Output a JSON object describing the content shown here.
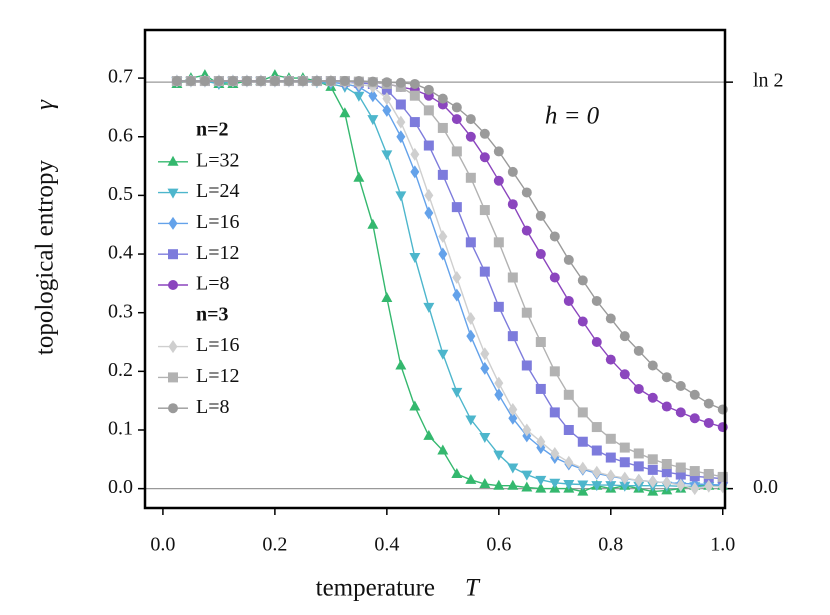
{
  "chart_data": {
    "type": "line",
    "xlabel": "temperature",
    "xlabel_symbol": "T",
    "ylabel": "topological entropy",
    "ylabel_symbol": "γ",
    "annotation": "h = 0",
    "xlim": [
      -0.032,
      1.004
    ],
    "ylim": [
      -0.033,
      0.782
    ],
    "xticks": [
      {
        "value": 0,
        "label": "0.0"
      },
      {
        "value": 0.2,
        "label": "0.2"
      },
      {
        "value": 0.4,
        "label": "0.4"
      },
      {
        "value": 0.6,
        "label": "0.6"
      },
      {
        "value": 0.8,
        "label": "0.8"
      },
      {
        "value": 1,
        "label": "1.0"
      }
    ],
    "yticks": [
      {
        "value": 0,
        "label": "0.0"
      },
      0.1,
      0.2,
      0.3,
      0.4,
      0.5,
      0.6,
      0.7
    ],
    "y2lim": [
      -0.033,
      0.782
    ],
    "y2ticks": [
      {
        "value": 0.6931,
        "label": "ln 2"
      },
      {
        "value": 0,
        "label": "0.0"
      }
    ],
    "x": [
      0.025,
      0.05,
      0.075,
      0.1,
      0.125,
      0.15,
      0.175,
      0.2,
      0.225,
      0.25,
      0.275,
      0.3,
      0.325,
      0.35,
      0.375,
      0.4,
      0.425,
      0.45,
      0.475,
      0.5,
      0.525,
      0.55,
      0.575,
      0.6,
      0.625,
      0.65,
      0.675,
      0.7,
      0.725,
      0.75,
      0.775,
      0.8,
      0.825,
      0.85,
      0.875,
      0.9,
      0.925,
      0.95,
      0.975,
      1.0
    ],
    "groups": [
      {
        "title": "n=2",
        "series": [
          {
            "name": "L=32",
            "color": "#34b86e",
            "marker": "triangle-up",
            "values": [
              0.69,
              0.7,
              0.705,
              0.69,
              0.69,
              0.695,
              0.695,
              0.705,
              0.7,
              0.7,
              0.695,
              0.685,
              0.64,
              0.53,
              0.45,
              0.325,
              0.21,
              0.14,
              0.09,
              0.065,
              0.025,
              0.015,
              0.008,
              0.005,
              0.005,
              0.002,
              0.0,
              0.0,
              0.0,
              -0.005,
              0.005,
              0.0,
              0.005,
              0.0,
              -0.005,
              -0.003,
              0.0,
              0.005,
              0.005,
              0.005
            ]
          },
          {
            "name": "L=24",
            "color": "#4db6cc",
            "marker": "triangle-down",
            "values": [
              0.695,
              0.695,
              0.695,
              0.69,
              0.695,
              0.695,
              0.695,
              0.695,
              0.695,
              0.695,
              0.693,
              0.69,
              0.685,
              0.67,
              0.63,
              0.57,
              0.5,
              0.395,
              0.31,
              0.23,
              0.165,
              0.118,
              0.088,
              0.058,
              0.036,
              0.024,
              0.015,
              0.01,
              0.008,
              0.007,
              0.006,
              0.006,
              0.005,
              0.005,
              0.005,
              0.005,
              0.004,
              0.004,
              0.004,
              0.004
            ]
          },
          {
            "name": "L=16",
            "color": "#64a2ea",
            "marker": "diamond",
            "values": [
              0.695,
              0.695,
              0.695,
              0.695,
              0.695,
              0.695,
              0.695,
              0.695,
              0.695,
              0.695,
              0.695,
              0.693,
              0.69,
              0.685,
              0.67,
              0.645,
              0.6,
              0.54,
              0.47,
              0.4,
              0.33,
              0.26,
              0.205,
              0.16,
              0.12,
              0.09,
              0.07,
              0.053,
              0.042,
              0.033,
              0.026,
              0.021,
              0.017,
              0.014,
              0.012,
              0.01,
              0.009,
              0.008,
              0.007,
              0.006
            ]
          },
          {
            "name": "L=12",
            "color": "#7d7bdc",
            "marker": "square",
            "values": [
              0.695,
              0.695,
              0.695,
              0.695,
              0.695,
              0.695,
              0.695,
              0.695,
              0.695,
              0.695,
              0.695,
              0.695,
              0.694,
              0.692,
              0.69,
              0.68,
              0.655,
              0.625,
              0.585,
              0.535,
              0.48,
              0.42,
              0.37,
              0.31,
              0.26,
              0.21,
              0.17,
              0.13,
              0.1,
              0.08,
              0.065,
              0.053,
              0.045,
              0.038,
              0.032,
              0.028,
              0.024,
              0.021,
              0.019,
              0.017
            ]
          },
          {
            "name": "L=8",
            "color": "#8b45be",
            "marker": "circle",
            "values": [
              0.695,
              0.695,
              0.695,
              0.695,
              0.695,
              0.695,
              0.695,
              0.695,
              0.695,
              0.695,
              0.695,
              0.695,
              0.695,
              0.694,
              0.693,
              0.69,
              0.685,
              0.68,
              0.67,
              0.655,
              0.63,
              0.6,
              0.565,
              0.525,
              0.485,
              0.44,
              0.4,
              0.36,
              0.32,
              0.285,
              0.25,
              0.22,
              0.195,
              0.17,
              0.155,
              0.14,
              0.13,
              0.12,
              0.112,
              0.105
            ]
          }
        ]
      },
      {
        "title": "n=3",
        "series": [
          {
            "name": "L=16",
            "color": "#cfcfcf",
            "marker": "diamond",
            "values": [
              0.695,
              0.695,
              0.695,
              0.695,
              0.695,
              0.695,
              0.695,
              0.695,
              0.695,
              0.695,
              0.695,
              0.695,
              0.693,
              0.69,
              0.685,
              0.665,
              0.625,
              0.57,
              0.5,
              0.43,
              0.36,
              0.29,
              0.23,
              0.18,
              0.135,
              0.1,
              0.08,
              0.06,
              0.045,
              0.035,
              0.028,
              0.022,
              0.018,
              0.014,
              0.012,
              0.01,
              0.006,
              0.0,
              0.004,
              0.003
            ]
          },
          {
            "name": "L=12",
            "color": "#b2b2b2",
            "marker": "square",
            "values": [
              0.695,
              0.695,
              0.695,
              0.695,
              0.695,
              0.695,
              0.695,
              0.695,
              0.695,
              0.695,
              0.695,
              0.695,
              0.695,
              0.694,
              0.693,
              0.69,
              0.685,
              0.67,
              0.645,
              0.615,
              0.575,
              0.53,
              0.475,
              0.42,
              0.36,
              0.3,
              0.25,
              0.2,
              0.16,
              0.13,
              0.105,
              0.085,
              0.07,
              0.06,
              0.05,
              0.042,
              0.036,
              0.03,
              0.025,
              0.02
            ]
          },
          {
            "name": "L=8",
            "color": "#9a9a9a",
            "marker": "circle",
            "values": [
              0.695,
              0.695,
              0.695,
              0.695,
              0.695,
              0.695,
              0.695,
              0.695,
              0.695,
              0.695,
              0.695,
              0.695,
              0.695,
              0.695,
              0.694,
              0.693,
              0.692,
              0.69,
              0.68,
              0.665,
              0.65,
              0.63,
              0.605,
              0.575,
              0.54,
              0.505,
              0.465,
              0.43,
              0.39,
              0.355,
              0.32,
              0.29,
              0.26,
              0.235,
              0.21,
              0.19,
              0.175,
              0.16,
              0.145,
              0.135
            ]
          }
        ]
      }
    ]
  }
}
